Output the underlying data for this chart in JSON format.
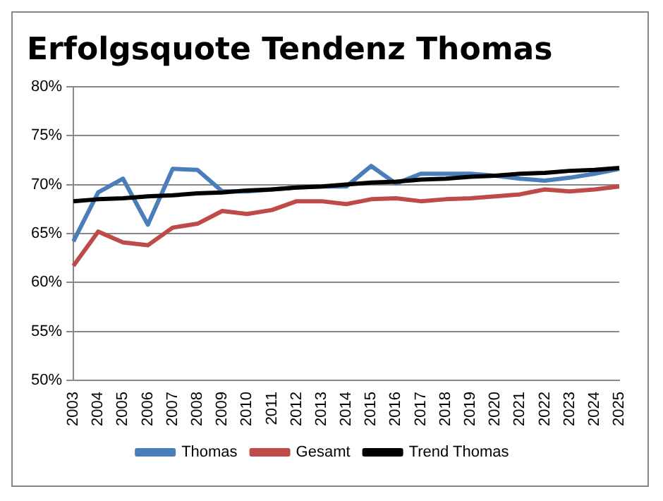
{
  "chart_data": {
    "type": "line",
    "title": "Erfolgsquote Tendenz Thomas",
    "categories": [
      "2003",
      "2004",
      "2005",
      "2006",
      "2007",
      "2008",
      "2009",
      "2010",
      "2011",
      "2012",
      "2013",
      "2014",
      "2015",
      "2016",
      "2017",
      "2018",
      "2019",
      "2020",
      "2021",
      "2022",
      "2023",
      "2024",
      "2025"
    ],
    "series": [
      {
        "name": "Thomas",
        "color": "#4a7ebb",
        "values": [
          64.2,
          69.2,
          70.6,
          65.9,
          71.6,
          71.5,
          69.3,
          69.3,
          69.5,
          69.7,
          69.8,
          69.8,
          71.9,
          70.1,
          71.1,
          71.1,
          71.1,
          70.9,
          70.6,
          70.4,
          70.7,
          71.1,
          71.6
        ]
      },
      {
        "name": "Gesamt",
        "color": "#be4b48",
        "values": [
          61.7,
          65.2,
          64.1,
          63.8,
          65.6,
          66.0,
          67.3,
          67.0,
          67.4,
          68.3,
          68.3,
          68.0,
          68.5,
          68.6,
          68.3,
          68.5,
          68.6,
          68.8,
          69.0,
          69.5,
          69.3,
          69.5,
          69.8
        ]
      },
      {
        "name": "Trend Thomas",
        "color": "#000000",
        "values": [
          68.3,
          68.5,
          68.6,
          68.8,
          68.9,
          69.1,
          69.2,
          69.4,
          69.5,
          69.7,
          69.8,
          70.0,
          70.2,
          70.3,
          70.5,
          70.6,
          70.8,
          70.9,
          71.1,
          71.2,
          71.4,
          71.5,
          71.7
        ]
      }
    ],
    "ylim": [
      50,
      80
    ],
    "yticks": [
      {
        "value": 50,
        "label": "50%"
      },
      {
        "value": 55,
        "label": "55%"
      },
      {
        "value": 60,
        "label": "60%"
      },
      {
        "value": 65,
        "label": "65%"
      },
      {
        "value": 70,
        "label": "70%"
      },
      {
        "value": 75,
        "label": "75%"
      },
      {
        "value": 80,
        "label": "80%"
      }
    ],
    "grid": "y",
    "legend": "bottom",
    "marker": "none",
    "line_style": "solid"
  }
}
